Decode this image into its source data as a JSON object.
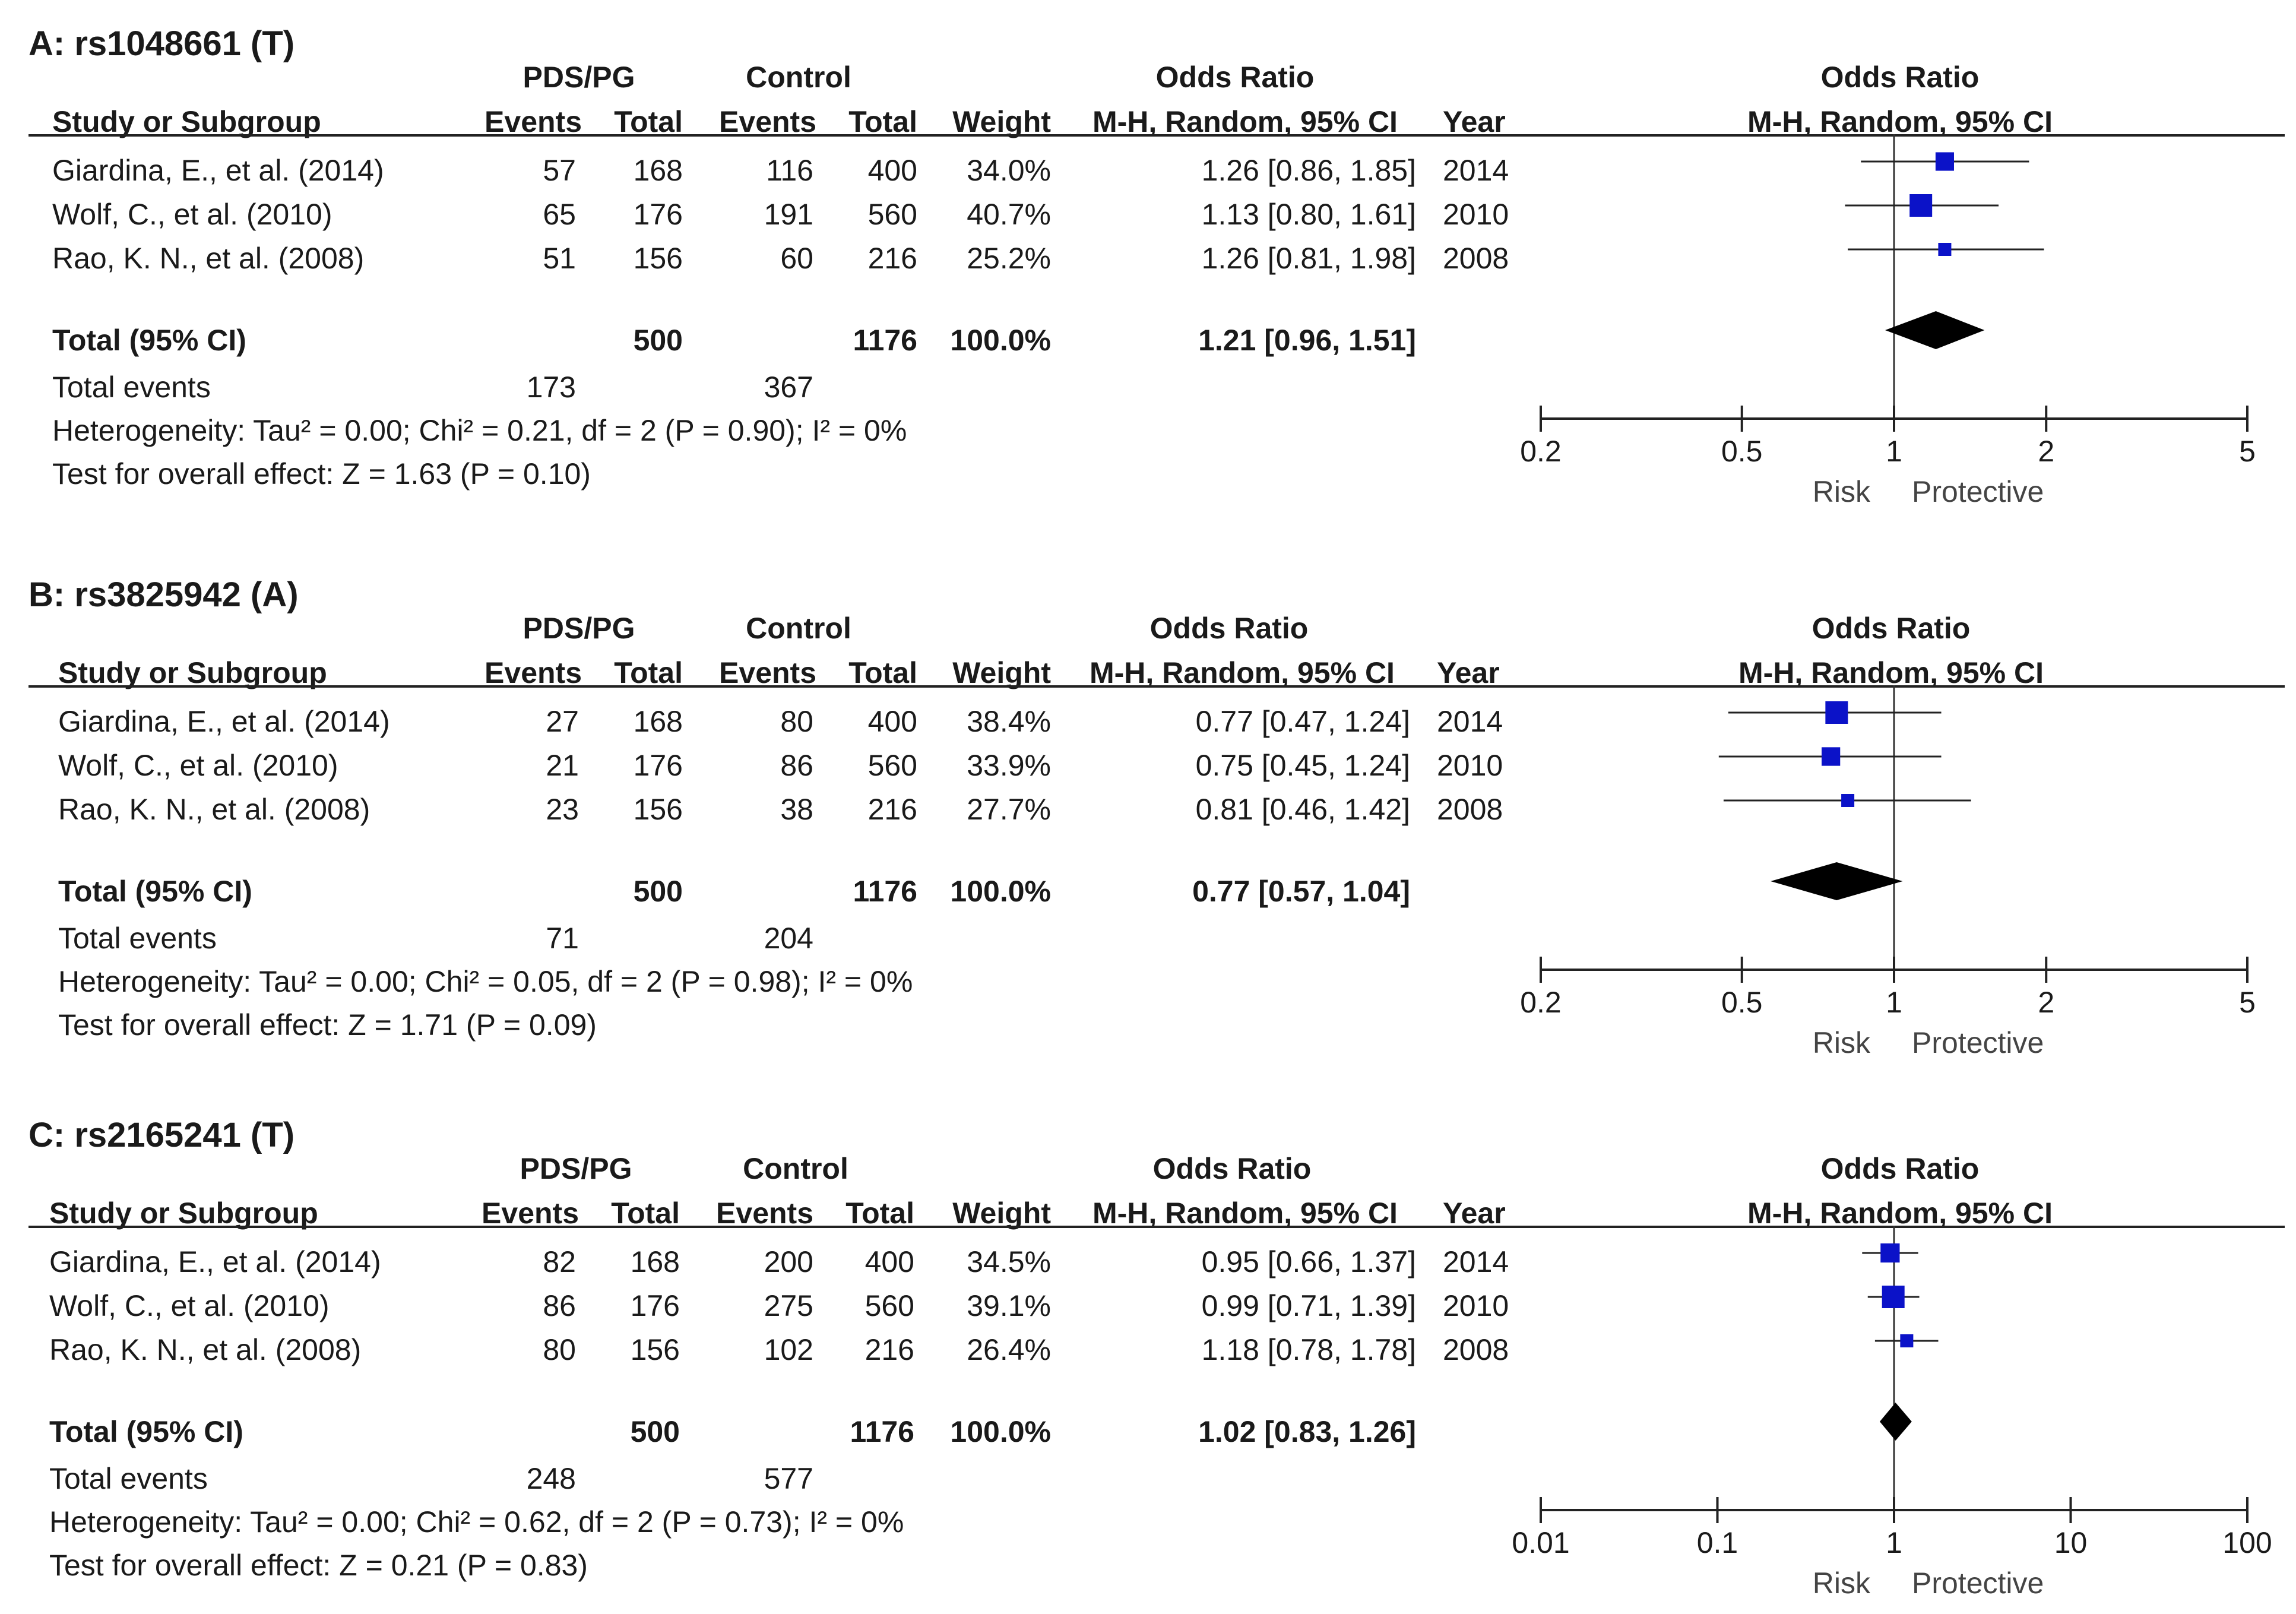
{
  "headers": {
    "group1": "PDS/PG",
    "group2": "Control",
    "or_label": "Odds Ratio",
    "study": "Study or Subgroup",
    "events": "Events",
    "total": "Total",
    "weight": "Weight",
    "method": "M-H, Random, 95% CI",
    "year": "Year",
    "plot_title": "Odds Ratio",
    "plot_method": "M-H, Random, 95% CI",
    "total_row": "Total (95% CI)",
    "total_events": "Total events",
    "left_label": "Risk",
    "right_label": "Protective"
  },
  "chart_data": [
    {
      "type": "forest",
      "title": "A: rs1048661 (T)",
      "scale": "log",
      "xlim": [
        0.2,
        5
      ],
      "ticks": [
        "0.2",
        "0.5",
        "1",
        "2",
        "5"
      ],
      "rows": [
        {
          "study": "Giardina, E., et al. (2014)",
          "e1": "57",
          "n1": "168",
          "e2": "116",
          "n2": "400",
          "weight": "34.0%",
          "ci_text": "1.26 [0.86, 1.85]",
          "year": "2014",
          "or": 1.26,
          "lo": 0.86,
          "hi": 1.85,
          "w": 34.0
        },
        {
          "study": "Wolf, C., et al. (2010)",
          "e1": "65",
          "n1": "176",
          "e2": "191",
          "n2": "560",
          "weight": "40.7%",
          "ci_text": "1.13 [0.80, 1.61]",
          "year": "2010",
          "or": 1.13,
          "lo": 0.8,
          "hi": 1.61,
          "w": 40.7
        },
        {
          "study": "Rao, K. N., et al. (2008)",
          "e1": "51",
          "n1": "156",
          "e2": "60",
          "n2": "216",
          "weight": "25.2%",
          "ci_text": "1.26 [0.81, 1.98]",
          "year": "2008",
          "or": 1.26,
          "lo": 0.81,
          "hi": 1.98,
          "w": 25.2
        }
      ],
      "total": {
        "n1": "500",
        "n2": "1176",
        "weight": "100.0%",
        "ci_text": "1.21 [0.96, 1.51]",
        "or": 1.21,
        "lo": 0.96,
        "hi": 1.51
      },
      "total_events": {
        "e1": "173",
        "e2": "367"
      },
      "heterogeneity": "Heterogeneity: Tau² = 0.00; Chi² = 0.21, df = 2 (P = 0.90); I² = 0%",
      "overall": "Test for overall effect: Z = 1.63 (P = 0.10)"
    },
    {
      "type": "forest",
      "title": "B: rs3825942 (A)",
      "scale": "log",
      "xlim": [
        0.2,
        5
      ],
      "ticks": [
        "0.2",
        "0.5",
        "1",
        "2",
        "5"
      ],
      "rows": [
        {
          "study": "Giardina, E., et al. (2014)",
          "e1": "27",
          "n1": "168",
          "e2": "80",
          "n2": "400",
          "weight": "38.4%",
          "ci_text": "0.77 [0.47, 1.24]",
          "year": "2014",
          "or": 0.77,
          "lo": 0.47,
          "hi": 1.24,
          "w": 38.4
        },
        {
          "study": "Wolf, C., et al. (2010)",
          "e1": "21",
          "n1": "176",
          "e2": "86",
          "n2": "560",
          "weight": "33.9%",
          "ci_text": "0.75 [0.45, 1.24]",
          "year": "2010",
          "or": 0.75,
          "lo": 0.45,
          "hi": 1.24,
          "w": 33.9
        },
        {
          "study": "Rao, K. N., et al. (2008)",
          "e1": "23",
          "n1": "156",
          "e2": "38",
          "n2": "216",
          "weight": "27.7%",
          "ci_text": "0.81 [0.46, 1.42]",
          "year": "2008",
          "or": 0.81,
          "lo": 0.46,
          "hi": 1.42,
          "w": 27.7
        }
      ],
      "total": {
        "n1": "500",
        "n2": "1176",
        "weight": "100.0%",
        "ci_text": "0.77 [0.57, 1.04]",
        "or": 0.77,
        "lo": 0.57,
        "hi": 1.04
      },
      "total_events": {
        "e1": "71",
        "e2": "204"
      },
      "heterogeneity": "Heterogeneity: Tau² = 0.00; Chi² = 0.05, df = 2 (P = 0.98); I² = 0%",
      "overall": "Test for overall effect: Z = 1.71 (P = 0.09)"
    },
    {
      "type": "forest",
      "title": "C: rs2165241 (T)",
      "scale": "log",
      "xlim": [
        0.01,
        100
      ],
      "ticks": [
        "0.01",
        "0.1",
        "1",
        "10",
        "100"
      ],
      "rows": [
        {
          "study": "Giardina, E., et al. (2014)",
          "e1": "82",
          "n1": "168",
          "e2": "200",
          "n2": "400",
          "weight": "34.5%",
          "ci_text": "0.95 [0.66, 1.37]",
          "year": "2014",
          "or": 0.95,
          "lo": 0.66,
          "hi": 1.37,
          "w": 34.5
        },
        {
          "study": "Wolf, C., et al. (2010)",
          "e1": "86",
          "n1": "176",
          "e2": "275",
          "n2": "560",
          "weight": "39.1%",
          "ci_text": "0.99 [0.71, 1.39]",
          "year": "2010",
          "or": 0.99,
          "lo": 0.71,
          "hi": 1.39,
          "w": 39.1
        },
        {
          "study": "Rao, K. N., et al. (2008)",
          "e1": "80",
          "n1": "156",
          "e2": "102",
          "n2": "216",
          "weight": "26.4%",
          "ci_text": "1.18 [0.78, 1.78]",
          "year": "2008",
          "or": 1.18,
          "lo": 0.78,
          "hi": 1.78,
          "w": 26.4
        }
      ],
      "total": {
        "n1": "500",
        "n2": "1176",
        "weight": "100.0%",
        "ci_text": "1.02 [0.83, 1.26]",
        "or": 1.02,
        "lo": 0.83,
        "hi": 1.26
      },
      "total_events": {
        "e1": "248",
        "e2": "577"
      },
      "heterogeneity": "Heterogeneity: Tau² = 0.00; Chi² = 0.62, df = 2 (P = 0.73); I² = 0%",
      "overall": "Test for overall effect: Z = 0.21 (P = 0.83)"
    }
  ]
}
